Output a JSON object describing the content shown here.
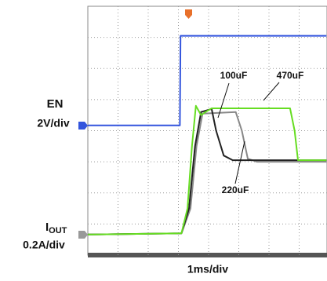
{
  "chart_data": {
    "type": "line",
    "x_label": "1ms/div",
    "en_scale": "2V/div",
    "current_label": {
      "text": "I",
      "subscript": "OUT"
    },
    "current_scale": "0.2A/div",
    "xlim": [
      0,
      7.9
    ],
    "ylim": [
      0,
      8
    ],
    "xticks": [
      1,
      2,
      3,
      4,
      5,
      6,
      7
    ],
    "yticks": [
      1,
      2,
      3,
      4,
      5,
      6,
      7
    ],
    "grid": true,
    "series": [
      {
        "name": "EN",
        "color": "#3355dd",
        "x": [
          0,
          3.05,
          3.07,
          7.9
        ],
        "values": [
          4.17,
          4.17,
          7.05,
          7.05
        ]
      },
      {
        "name": "470uF",
        "color": "#66dd22",
        "x": [
          0,
          3.1,
          3.3,
          3.45,
          3.58,
          3.75,
          3.9,
          4.1,
          6.7,
          6.85,
          6.96,
          7.9
        ],
        "values": [
          0.66,
          0.7,
          1.5,
          3.5,
          4.8,
          4.5,
          4.6,
          4.72,
          4.72,
          4.0,
          3.05,
          3.05
        ]
      },
      {
        "name": "100uF",
        "color": "#222222",
        "x": [
          0,
          3.1,
          3.35,
          3.55,
          3.75,
          4.1,
          4.25,
          4.5,
          4.8,
          7.9
        ],
        "values": [
          0.66,
          0.7,
          1.5,
          3.5,
          4.6,
          4.7,
          4.0,
          3.2,
          3.05,
          3.05
        ]
      },
      {
        "name": "220uF",
        "color": "#888888",
        "x": [
          0,
          3.1,
          3.4,
          3.6,
          3.8,
          4.9,
          5.1,
          5.3,
          5.6,
          7.9
        ],
        "values": [
          0.66,
          0.7,
          1.5,
          3.5,
          4.55,
          4.6,
          4.0,
          3.1,
          3.0,
          3.0
        ]
      }
    ]
  }
}
